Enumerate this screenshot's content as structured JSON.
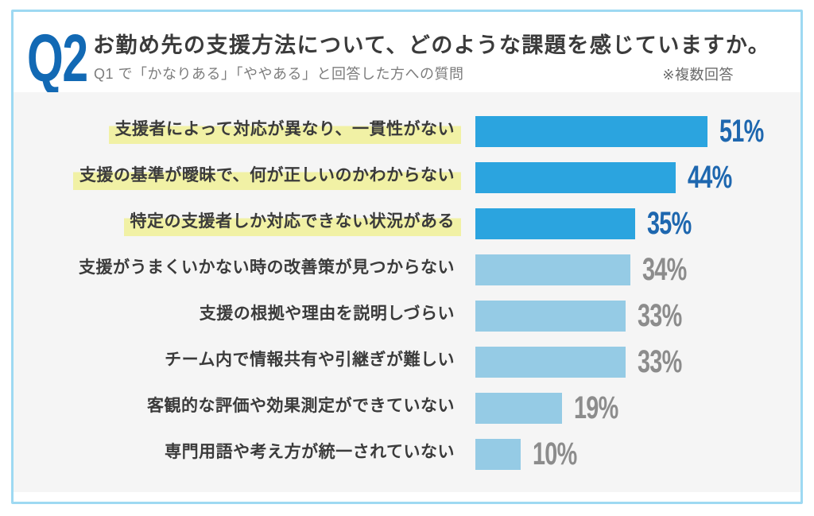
{
  "header": {
    "q_label": "Q2",
    "title": "お勤め先の支援方法について、どのような課題を感じていますか。",
    "subtitle": "Q1 で「かなりある」「ややある」と回答した方への質問",
    "note": "※複数回答"
  },
  "chart_data": {
    "type": "bar",
    "orientation": "horizontal",
    "unit": "%",
    "value_range": [
      0,
      60
    ],
    "categories": [
      "支援者によって対応が異なり、一貫性がない",
      "支援の基準が曖昧で、何が正しいのかわからない",
      "特定の支援者しか対応できない状況がある",
      "支援がうまくいかない時の改善策が見つからない",
      "支援の根拠や理由を説明しづらい",
      "チーム内で情報共有や引継ぎが難しい",
      "客観的な評価や効果測定ができていない",
      "専門用語や考え方が統一されていない"
    ],
    "values": [
      51,
      44,
      35,
      34,
      33,
      33,
      19,
      10
    ],
    "items": [
      {
        "label": "支援者によって対応が異なり、一貫性がない",
        "value": 51,
        "highlighted": true
      },
      {
        "label": "支援の基準が曖昧で、何が正しいのかわからない",
        "value": 44,
        "highlighted": true
      },
      {
        "label": "特定の支援者しか対応できない状況がある",
        "value": 35,
        "highlighted": true
      },
      {
        "label": "支援がうまくいかない時の改善策が見つからない",
        "value": 34,
        "highlighted": false
      },
      {
        "label": "支援の根拠や理由を説明しづらい",
        "value": 33,
        "highlighted": false
      },
      {
        "label": "チーム内で情報共有や引継ぎが難しい",
        "value": 33,
        "highlighted": false
      },
      {
        "label": "客観的な評価や効果測定ができていない",
        "value": 19,
        "highlighted": false
      },
      {
        "label": "専門用語や考え方が統一されていない",
        "value": 10,
        "highlighted": false
      }
    ],
    "colors": {
      "bar_highlight": "#2ba4df",
      "bar_normal": "#95cbe5",
      "value_highlight": "#1e67af",
      "value_normal": "#8c8c8c",
      "label_marker_yellow": "#f1f1a5",
      "q_label_blue": "#1269b4",
      "card_border": "#9ed9f2",
      "chart_background": "#f5f5f5"
    }
  }
}
